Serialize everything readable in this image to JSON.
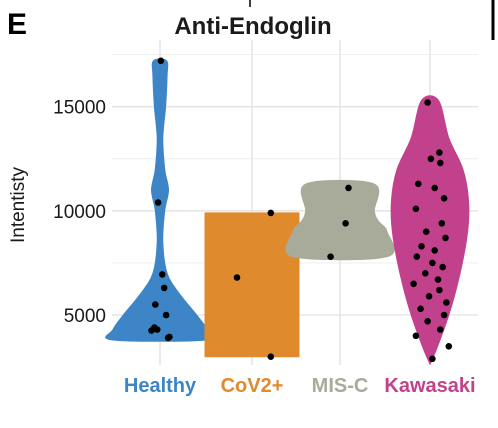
{
  "panel_letter": "E",
  "chart_data": {
    "type": "violin",
    "title": "Anti-Endoglin",
    "xlabel": "",
    "ylabel": "Intentisty",
    "ylim": [
      2600,
      18200
    ],
    "yticks": [
      5000,
      10000,
      15000
    ],
    "grid": true,
    "legend": "none",
    "categories": [
      "Healthy",
      "CoV2+",
      "MIS-C",
      "Kawasaki"
    ],
    "colors": [
      "#3d85c6",
      "#e08a2e",
      "#a8ab99",
      "#c2418d"
    ],
    "series": [
      {
        "category": "Healthy",
        "range": [
          3800,
          17200
        ],
        "shape": [
          [
            3800,
            1.0
          ],
          [
            4300,
            1.0
          ],
          [
            5000,
            0.78
          ],
          [
            6000,
            0.42
          ],
          [
            7000,
            0.15
          ],
          [
            8500,
            0.06
          ],
          [
            10000,
            0.1
          ],
          [
            11000,
            0.18
          ],
          [
            12000,
            0.1
          ],
          [
            13500,
            0.06
          ],
          [
            15000,
            0.12
          ],
          [
            16500,
            0.15
          ],
          [
            17200,
            0.14
          ]
        ],
        "points": [
          [
            0.02,
            17200
          ],
          [
            -0.04,
            10400
          ],
          [
            0.05,
            6950
          ],
          [
            0.09,
            6300
          ],
          [
            -0.1,
            5500
          ],
          [
            0.13,
            5000
          ],
          [
            -0.12,
            4400
          ],
          [
            -0.06,
            4300
          ],
          [
            -0.18,
            4250
          ],
          [
            0.17,
            3900
          ],
          [
            0.2,
            3950
          ]
        ]
      },
      {
        "category": "CoV2+",
        "range": [
          3000,
          9900
        ],
        "shape": [
          [
            3000,
            1.0
          ],
          [
            9900,
            1.0
          ]
        ],
        "points": [
          [
            0.4,
            9900
          ],
          [
            -0.32,
            6800
          ],
          [
            0.4,
            3000
          ]
        ]
      },
      {
        "category": "MIS-C",
        "range": [
          7800,
          11300
        ],
        "shape": [
          [
            7800,
            1.0
          ],
          [
            9000,
            1.0
          ],
          [
            9500,
            0.82
          ],
          [
            10000,
            0.73
          ],
          [
            11300,
            0.72
          ]
        ],
        "points": [
          [
            0.18,
            11100
          ],
          [
            0.12,
            9400
          ],
          [
            -0.2,
            7800
          ]
        ]
      },
      {
        "category": "Kawasaki",
        "range": [
          2900,
          15300
        ],
        "shape": [
          [
            2900,
            0.05
          ],
          [
            5000,
            0.4
          ],
          [
            7000,
            0.64
          ],
          [
            9000,
            0.8
          ],
          [
            10500,
            0.82
          ],
          [
            12000,
            0.7
          ],
          [
            13500,
            0.4
          ],
          [
            15300,
            0.18
          ]
        ],
        "points": [
          [
            -0.05,
            15200
          ],
          [
            0.2,
            12800
          ],
          [
            0.02,
            12500
          ],
          [
            0.22,
            12300
          ],
          [
            -0.25,
            11300
          ],
          [
            0.1,
            11100
          ],
          [
            0.3,
            10600
          ],
          [
            -0.3,
            10100
          ],
          [
            0.25,
            9400
          ],
          [
            -0.08,
            9000
          ],
          [
            0.33,
            8700
          ],
          [
            -0.18,
            8300
          ],
          [
            0.1,
            8100
          ],
          [
            -0.28,
            7800
          ],
          [
            0.05,
            7500
          ],
          [
            0.27,
            7300
          ],
          [
            -0.1,
            7000
          ],
          [
            0.17,
            6700
          ],
          [
            -0.35,
            6500
          ],
          [
            0.2,
            6200
          ],
          [
            -0.02,
            5900
          ],
          [
            0.35,
            5600
          ],
          [
            -0.2,
            5300
          ],
          [
            0.3,
            5000
          ],
          [
            -0.05,
            4700
          ],
          [
            0.22,
            4300
          ],
          [
            -0.3,
            4000
          ],
          [
            0.4,
            3500
          ],
          [
            0.05,
            2900
          ]
        ]
      }
    ]
  }
}
